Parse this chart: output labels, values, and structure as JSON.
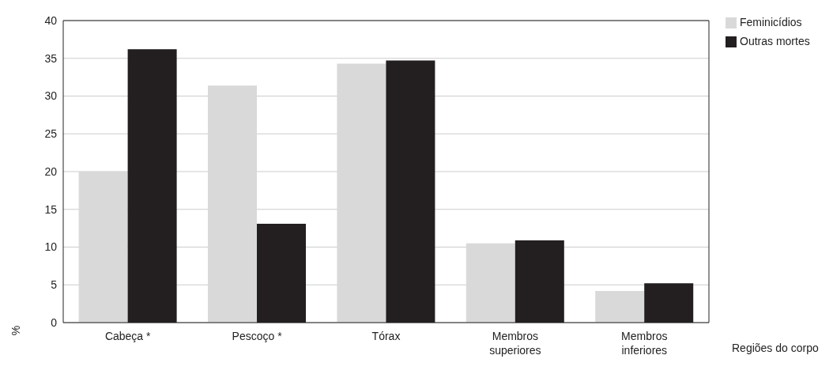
{
  "chart_data": {
    "type": "bar",
    "xlabel": "Regiões do corpo",
    "ylabel": "%",
    "categories": [
      "Cabeça *",
      "Pescoço *",
      "Tórax",
      "Membros superiores",
      "Membros inferiores"
    ],
    "series": [
      {
        "name": "Feminicídios",
        "color": "#d9d9d9",
        "values": [
          20.0,
          31.4,
          34.3,
          10.5,
          4.2
        ]
      },
      {
        "name": "Outras mortes",
        "color": "#231f20",
        "values": [
          36.2,
          13.1,
          34.7,
          10.9,
          5.2
        ]
      }
    ],
    "ylim": [
      0,
      40
    ],
    "yticks": [
      0,
      5,
      10,
      15,
      20,
      25,
      30,
      35,
      40
    ],
    "grid": "y",
    "legend": "top right"
  }
}
